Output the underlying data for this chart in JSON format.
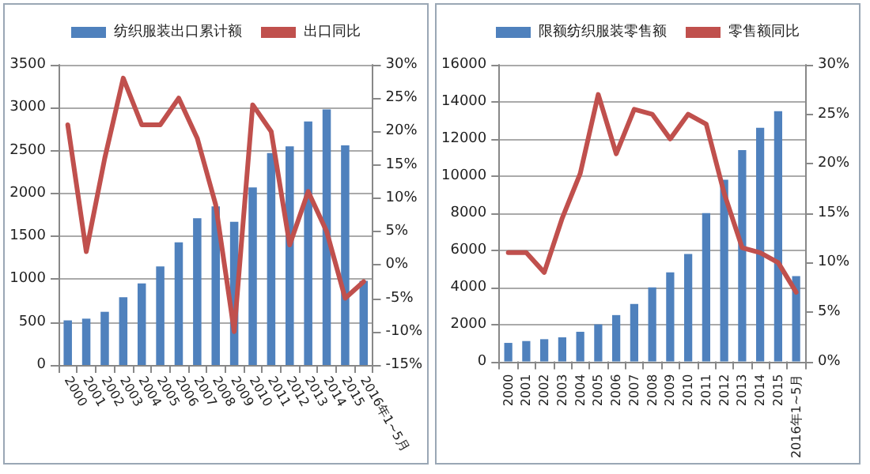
{
  "chart_data": [
    {
      "type": "bar",
      "categories": [
        "2000",
        "2001",
        "2002",
        "2003",
        "2004",
        "2005",
        "2006",
        "2007",
        "2008",
        "2009",
        "2010",
        "2011",
        "2012",
        "2013",
        "2014",
        "2015",
        "2016年1~5月"
      ],
      "series": [
        {
          "name": "纺织服装出口累计额",
          "color": "#4f81bd",
          "values": [
            520,
            540,
            620,
            790,
            950,
            1150,
            1430,
            1710,
            1850,
            1670,
            2070,
            2470,
            2550,
            2840,
            2980,
            2560,
            980
          ]
        },
        {
          "name": "出口同比",
          "type": "line",
          "axis": "y2",
          "color": "#c0504d",
          "values": [
            21,
            2,
            16,
            28,
            21,
            21,
            25,
            19,
            9,
            -10,
            24,
            20,
            3,
            11,
            5,
            -5,
            -2.5
          ]
        }
      ],
      "ylim": [
        0,
        3500
      ],
      "yticks": [
        0,
        500,
        1000,
        1500,
        2000,
        2500,
        3000,
        3500
      ],
      "y2lim": [
        -15,
        30
      ],
      "y2ticks": [
        {
          "value": -15,
          "label": "-15%"
        },
        {
          "value": -10,
          "label": "-10%"
        },
        {
          "value": -5,
          "label": "-5%"
        },
        {
          "value": 0,
          "label": "0%"
        },
        {
          "value": 5,
          "label": "5%"
        },
        {
          "value": 10,
          "label": "10%"
        },
        {
          "value": 15,
          "label": "15%"
        },
        {
          "value": 20,
          "label": "20%"
        },
        {
          "value": 25,
          "label": "25%"
        },
        {
          "value": 30,
          "label": "30%"
        }
      ],
      "grid": "y",
      "legend": "top",
      "marker": "none",
      "line_style": "solid"
    },
    {
      "type": "bar",
      "categories": [
        "2000",
        "2001",
        "2002",
        "2003",
        "2004",
        "2005",
        "2006",
        "2007",
        "2008",
        "2009",
        "2010",
        "2011",
        "2012",
        "2013",
        "2014",
        "2015",
        "2016年1~5月"
      ],
      "series": [
        {
          "name": "限额纺织服装零售额",
          "color": "#4f81bd",
          "values": [
            1000,
            1100,
            1200,
            1300,
            1600,
            2000,
            2500,
            3100,
            4000,
            4800,
            5800,
            8000,
            9800,
            11400,
            12600,
            13500,
            4600
          ]
        },
        {
          "name": "零售额同比",
          "type": "line",
          "axis": "y2",
          "color": "#c0504d",
          "values": [
            11,
            11,
            9,
            14.5,
            19,
            27,
            21,
            25.5,
            25,
            22.5,
            25,
            24,
            17,
            11.5,
            11,
            10,
            7
          ]
        }
      ],
      "ylim": [
        0,
        16000
      ],
      "yticks": [
        0,
        2000,
        4000,
        6000,
        8000,
        10000,
        12000,
        14000,
        16000
      ],
      "y2lim": [
        0,
        30
      ],
      "y2ticks": [
        {
          "value": 0,
          "label": "0%"
        },
        {
          "value": 5,
          "label": "5%"
        },
        {
          "value": 10,
          "label": "10%"
        },
        {
          "value": 15,
          "label": "15%"
        },
        {
          "value": 20,
          "label": "20%"
        },
        {
          "value": 25,
          "label": "25%"
        },
        {
          "value": 30,
          "label": "30%"
        }
      ],
      "grid": "y",
      "legend": "top",
      "marker": "none",
      "line_style": "solid"
    }
  ]
}
